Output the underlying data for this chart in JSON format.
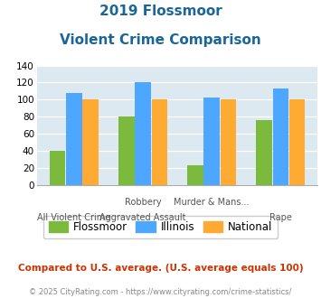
{
  "title_line1": "2019 Flossmoor",
  "title_line2": "Violent Crime Comparison",
  "cat_labels_row1": [
    "",
    "Robbery",
    "Murder & Mans...",
    ""
  ],
  "cat_labels_row2": [
    "All Violent Crime",
    "Aggravated Assault",
    "",
    "Rape"
  ],
  "flossmoor": [
    40,
    80,
    23,
    76
  ],
  "illinois": [
    108,
    120,
    102,
    113
  ],
  "national": [
    100,
    100,
    100,
    100
  ],
  "flossmoor_color": "#7cba3d",
  "illinois_color": "#4da6ff",
  "national_color": "#ffaa33",
  "ylim": [
    0,
    140
  ],
  "yticks": [
    0,
    20,
    40,
    60,
    80,
    100,
    120,
    140
  ],
  "plot_bg": "#dce9f0",
  "title_color": "#1a6699",
  "footer_text": "Compared to U.S. average. (U.S. average equals 100)",
  "footer_color": "#cc3300",
  "copyright_text": "© 2025 CityRating.com - https://www.cityrating.com/crime-statistics/",
  "copyright_color": "#888888",
  "legend_labels": [
    "Flossmoor",
    "Illinois",
    "National"
  ]
}
